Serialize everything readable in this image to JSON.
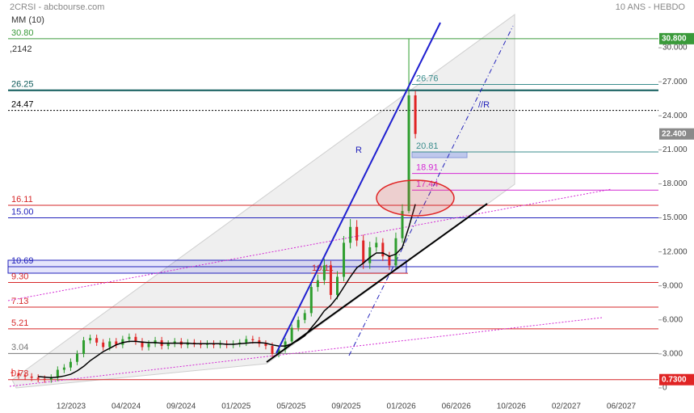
{
  "chart_data": {
    "type": "candlestick",
    "title": "2CRSI - abcbourse.com",
    "subtitle": "MM (10)",
    "period": "10 ANS - HEBDO",
    "top_note": ",2142",
    "annotations": [
      "R",
      "//R"
    ],
    "up_color": "#2e9e2e",
    "down_color": "#e02424",
    "ma_color": "#000000",
    "open": [
      1.4,
      1.3,
      1.1,
      1.0,
      0.9,
      0.8,
      0.75,
      0.9,
      1.6,
      1.8,
      2.3,
      3.0,
      4.2,
      4.4,
      4.0,
      3.6,
      4.1,
      3.8,
      4.3,
      4.5,
      4.1,
      3.6,
      3.9,
      4.2,
      3.7,
      3.9,
      4.1,
      3.8,
      4.0,
      3.9,
      3.8,
      3.9,
      3.8,
      3.9,
      3.8,
      3.9,
      4.0,
      4.3,
      4.2,
      3.9,
      3.7,
      3.0,
      3.4,
      4.1,
      5.3,
      6.0,
      6.6,
      8.9,
      9.5,
      10.8,
      8.2,
      9.8,
      12.8,
      14.2,
      13.0,
      11.0,
      12.4,
      12.8,
      11.6,
      10.8,
      13.2,
      15.6,
      25.8
    ],
    "high": [
      1.7,
      1.6,
      1.4,
      1.3,
      1.2,
      1.1,
      1.2,
      1.9,
      2.1,
      2.6,
      3.3,
      4.5,
      4.7,
      4.7,
      4.3,
      4.4,
      4.4,
      4.6,
      4.8,
      4.8,
      4.4,
      4.2,
      4.5,
      4.5,
      4.2,
      4.4,
      4.4,
      4.3,
      4.3,
      4.2,
      4.2,
      4.2,
      4.2,
      4.2,
      4.2,
      4.3,
      4.6,
      4.6,
      4.5,
      4.2,
      4.0,
      3.7,
      4.4,
      5.6,
      6.3,
      6.9,
      9.4,
      10.0,
      11.4,
      11.2,
      10.3,
      13.4,
      14.9,
      14.8,
      13.5,
      12.9,
      13.3,
      13.2,
      12.0,
      13.7,
      16.2,
      30.8,
      26.2
    ],
    "low": [
      1.0,
      0.8,
      0.7,
      0.6,
      0.5,
      0.45,
      0.45,
      0.6,
      1.3,
      1.5,
      2.0,
      2.7,
      3.9,
      3.7,
      3.3,
      3.3,
      3.5,
      3.5,
      4.0,
      3.8,
      3.3,
      3.3,
      3.6,
      3.4,
      3.4,
      3.6,
      3.5,
      3.5,
      3.6,
      3.5,
      3.5,
      3.5,
      3.5,
      3.5,
      3.5,
      3.6,
      3.7,
      3.9,
      3.6,
      3.4,
      2.7,
      2.7,
      3.1,
      3.8,
      5.0,
      5.7,
      6.3,
      8.5,
      9.1,
      7.8,
      7.8,
      9.4,
      12.3,
      12.5,
      10.5,
      10.5,
      12.0,
      11.2,
      10.4,
      10.4,
      12.8,
      15.4,
      22.0
    ],
    "close": [
      1.3,
      1.1,
      1.0,
      0.9,
      0.8,
      0.75,
      0.9,
      1.6,
      1.8,
      2.3,
      3.0,
      4.2,
      4.4,
      4.0,
      3.6,
      4.1,
      3.8,
      4.3,
      4.5,
      4.1,
      3.6,
      3.9,
      4.2,
      3.7,
      3.9,
      4.1,
      3.8,
      4.0,
      3.9,
      3.8,
      3.9,
      3.8,
      3.9,
      3.8,
      3.9,
      4.0,
      4.3,
      4.2,
      3.9,
      3.7,
      3.0,
      3.4,
      4.1,
      5.3,
      6.0,
      6.6,
      8.9,
      9.5,
      10.8,
      8.2,
      9.8,
      12.8,
      14.2,
      13.0,
      11.0,
      12.4,
      12.8,
      11.6,
      10.8,
      13.2,
      15.6,
      25.8,
      22.4
    ],
    "ma": [
      null,
      null,
      null,
      null,
      1.0,
      0.95,
      0.9,
      0.95,
      1.05,
      1.2,
      1.5,
      1.9,
      2.4,
      2.8,
      3.2,
      3.5,
      3.8,
      4.0,
      4.1,
      4.1,
      4.05,
      4.0,
      4.0,
      3.95,
      3.95,
      3.95,
      3.95,
      3.95,
      3.9,
      3.9,
      3.9,
      3.9,
      3.9,
      3.85,
      3.85,
      3.9,
      3.95,
      4.0,
      4.0,
      3.95,
      3.8,
      3.7,
      3.7,
      3.9,
      4.2,
      4.6,
      5.3,
      6.0,
      6.8,
      7.3,
      8.0,
      8.9,
      9.8,
      10.6,
      11.0,
      11.5,
      11.9,
      11.9,
      11.6,
      11.8,
      12.4,
      14.2,
      16.2
    ],
    "ylim": [
      -1,
      33
    ],
    "yticks": [
      0,
      {
        "value": 3,
        "label": "3.000"
      },
      {
        "value": 6,
        "label": "6.000"
      },
      {
        "value": 9,
        "label": "9.000"
      },
      {
        "value": 12,
        "label": "12.000"
      },
      {
        "value": 15,
        "label": "15.000"
      },
      {
        "value": 18,
        "label": "18.000"
      },
      {
        "value": 21,
        "label": "21.000"
      },
      {
        "value": 24,
        "label": "24.000"
      },
      {
        "value": 27,
        "label": "27.000"
      },
      {
        "value": 30,
        "label": "30.000"
      }
    ],
    "xticks": [
      "12/2023",
      "04/2024",
      "09/2024",
      "01/2025",
      "05/2025",
      "09/2025",
      "01/2026",
      "06/2026",
      "10/2026",
      "02/2027",
      "06/2027"
    ],
    "levels": [
      {
        "value": 30.8,
        "label": "30.80",
        "color": "#3a9a3a"
      },
      {
        "value": 26.25,
        "label": "26.25",
        "color": "#0e5a5a",
        "style": "thick"
      },
      {
        "value": 24.47,
        "label": "24.47",
        "color": "#000000",
        "style": "dotted"
      },
      {
        "value": 16.11,
        "label": "16.11",
        "color": "#d62728"
      },
      {
        "value": 15,
        "label": "15.00",
        "color": "#2222bb"
      },
      {
        "value": 10.69,
        "label": "10.69",
        "color": "#2222bb",
        "style": "band"
      },
      {
        "value": 9.3,
        "label": "9.30",
        "color": "#d62728"
      },
      {
        "value": 7.13,
        "label": "7.13",
        "color": "#d62728"
      },
      {
        "value": 5.21,
        "label": "5.21",
        "color": "#d62728"
      },
      {
        "value": 3.04,
        "label": "3.04",
        "color": "#777777"
      },
      {
        "value": 0.73,
        "label": "0.73",
        "color": "#d62728"
      }
    ],
    "side_levels": [
      {
        "value": 26.76,
        "label": "26.76",
        "color": "#3b8d8d"
      },
      {
        "value": 20.81,
        "label": "20.81",
        "color": "#3b8d8d",
        "style": "box"
      },
      {
        "value": 18.91,
        "label": "18.91",
        "color": "#d42ad4"
      },
      {
        "value": 17.44,
        "label": "17.44",
        "color": "#d42ad4"
      }
    ],
    "mid_level": {
      "value": 10.11,
      "label": "10.11",
      "color": "#d62728"
    },
    "price_labels": [
      {
        "value": 30.8,
        "label": "30.800",
        "color": "#3a9a3a"
      },
      {
        "value": 22.4,
        "label": "22.400",
        "color": "#8a8a8a"
      },
      {
        "value": 0.73,
        "label": "0.7300",
        "color": "#e02424"
      }
    ]
  }
}
